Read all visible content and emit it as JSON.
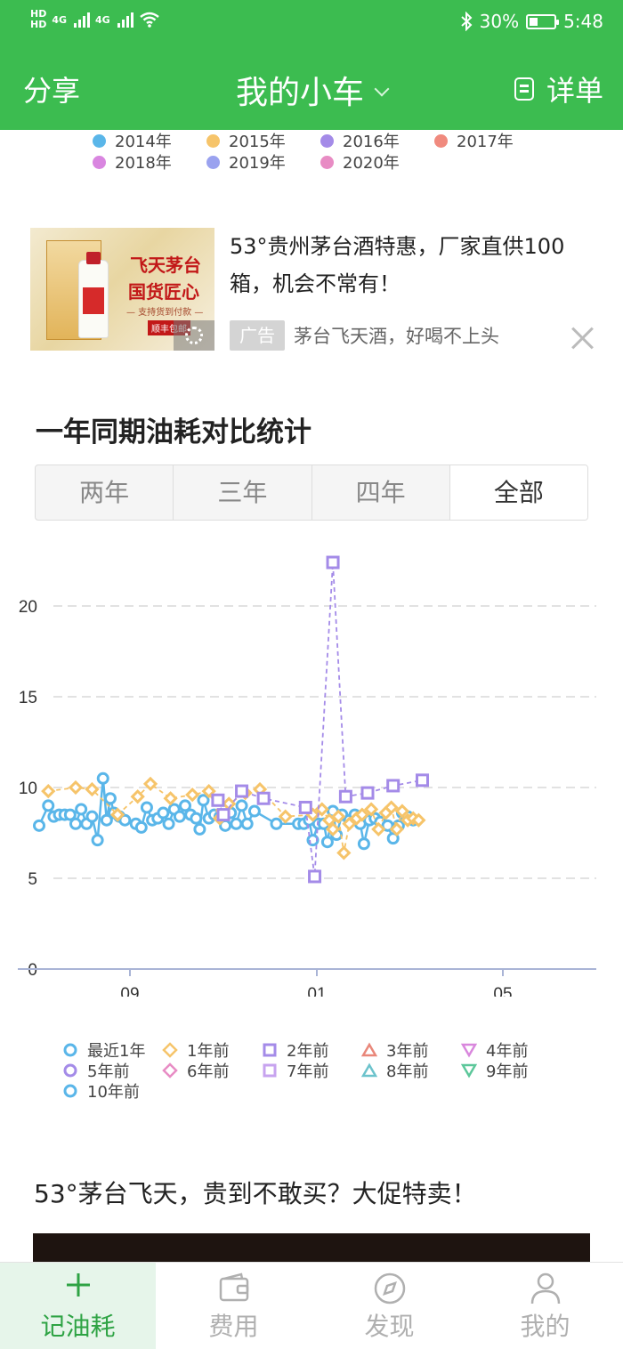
{
  "status_bar": {
    "hd1": "HD",
    "hd2": "HD",
    "net1": "4G",
    "net2": "4G",
    "battery": "30%",
    "time": "5:48"
  },
  "header": {
    "share": "分享",
    "title": "我的小车",
    "detail": "详单"
  },
  "year_legend": [
    "2014年",
    "2015年",
    "2016年",
    "2017年",
    "2018年",
    "2019年",
    "2020年"
  ],
  "year_legend_colors": [
    "#5ab6e9",
    "#f6c46a",
    "#a48be8",
    "#f08a7e",
    "#d986e0",
    "#9aa2ef",
    "#e88cc4"
  ],
  "ad": {
    "title": "53°贵州茅台酒特惠，厂家直供100箱，机会不常有！",
    "tag": "广告",
    "subtitle": "茅台飞天酒，好喝不上头",
    "image_text_1": "飞天茅台",
    "image_text_2": "国货匠心",
    "image_text_3": "— 支持货到付款 —",
    "image_text_4": "顺丰包邮"
  },
  "section": {
    "title": "一年同期油耗对比统计",
    "tabs": [
      "两年",
      "三年",
      "四年",
      "全部"
    ],
    "selected_tab": "全部"
  },
  "chart_data": {
    "type": "line",
    "y_ticks": [
      "0",
      "5",
      "10",
      "15",
      "20"
    ],
    "ylim": [
      0,
      23
    ],
    "x_ticks": [
      "09",
      "01",
      "05"
    ],
    "grid": "horizontal dashed",
    "legend_position": "bottom",
    "x": [
      0,
      3,
      6,
      9,
      12,
      15,
      18,
      21,
      24,
      27,
      30,
      33,
      36,
      39,
      42,
      45,
      48,
      51,
      54,
      57,
      60,
      63,
      66,
      69,
      72,
      75,
      78,
      81,
      84,
      87,
      90,
      93,
      96,
      99,
      102,
      105,
      108,
      111,
      114,
      117,
      120,
      123,
      126,
      129,
      132,
      135,
      138,
      141,
      144,
      147,
      150,
      153,
      156,
      159,
      162,
      165,
      168,
      171,
      174,
      177,
      180,
      183,
      186,
      189,
      192,
      195,
      198,
      201,
      204,
      207,
      210,
      213,
      216,
      219,
      222,
      225,
      228,
      231,
      234,
      237,
      240
    ],
    "series": [
      {
        "name": "最近1年",
        "color": "#5ab6e9",
        "points": [
          [
            0,
            7.9
          ],
          [
            5,
            9.0
          ],
          [
            8,
            8.4
          ],
          [
            11,
            8.5
          ],
          [
            14,
            8.5
          ],
          [
            17,
            8.5
          ],
          [
            20,
            8.0
          ],
          [
            23,
            8.8
          ],
          [
            26,
            8.0
          ],
          [
            29,
            8.4
          ],
          [
            32,
            7.1
          ],
          [
            35,
            10.5
          ],
          [
            37,
            8.2
          ],
          [
            39,
            9.4
          ],
          [
            41,
            8.6
          ],
          [
            44,
            8.4
          ],
          [
            47,
            8.2
          ],
          [
            53,
            8.0
          ],
          [
            56,
            7.8
          ],
          [
            59,
            8.9
          ],
          [
            62,
            8.2
          ],
          [
            65,
            8.3
          ],
          [
            68,
            8.6
          ],
          [
            71,
            8.0
          ],
          [
            74,
            8.8
          ],
          [
            77,
            8.4
          ],
          [
            80,
            9.0
          ],
          [
            83,
            8.5
          ],
          [
            86,
            8.3
          ],
          [
            88,
            7.7
          ],
          [
            90,
            9.3
          ],
          [
            93,
            8.3
          ],
          [
            96,
            8.5
          ],
          [
            99,
            8.4
          ],
          [
            102,
            7.9
          ],
          [
            105,
            8.6
          ],
          [
            108,
            8.0
          ],
          [
            111,
            9.0
          ],
          [
            114,
            8.0
          ],
          [
            118,
            8.7
          ],
          [
            130,
            8.0
          ],
          [
            142,
            8.0
          ],
          [
            145,
            8.0
          ],
          [
            148,
            8.2
          ],
          [
            150,
            7.1
          ],
          [
            153,
            8.0
          ],
          [
            156,
            8.0
          ],
          [
            158,
            7.0
          ],
          [
            161,
            8.7
          ],
          [
            163,
            7.4
          ],
          [
            166,
            8.5
          ],
          [
            170,
            8.2
          ],
          [
            173,
            8.5
          ],
          [
            176,
            8.0
          ],
          [
            178,
            6.9
          ],
          [
            181,
            8.2
          ],
          [
            184,
            8.3
          ],
          [
            187,
            8.1
          ],
          [
            191,
            7.9
          ],
          [
            194,
            7.2
          ],
          [
            197,
            7.9
          ],
          [
            199,
            8.6
          ],
          [
            202,
            8.4
          ],
          [
            205,
            8.2
          ]
        ]
      },
      {
        "name": "1年前",
        "color": "#f6c46a",
        "points": [
          [
            5,
            9.8
          ],
          [
            20,
            10.0
          ],
          [
            29,
            9.9
          ],
          [
            43,
            8.5
          ],
          [
            54,
            9.5
          ],
          [
            61,
            10.2
          ],
          [
            72,
            9.4
          ],
          [
            84,
            9.6
          ],
          [
            93,
            9.8
          ],
          [
            99,
            8.3
          ],
          [
            104,
            9.1
          ],
          [
            113,
            9.7
          ],
          [
            121,
            9.9
          ],
          [
            135,
            8.4
          ],
          [
            150,
            8.5
          ],
          [
            155,
            8.8
          ],
          [
            159,
            8.2
          ],
          [
            161,
            7.7
          ],
          [
            164,
            8.4
          ],
          [
            167,
            6.4
          ],
          [
            170,
            8.0
          ],
          [
            174,
            8.3
          ],
          [
            177,
            8.5
          ],
          [
            182,
            8.8
          ],
          [
            186,
            7.7
          ],
          [
            190,
            8.6
          ],
          [
            193,
            8.9
          ],
          [
            196,
            7.7
          ],
          [
            199,
            8.7
          ],
          [
            202,
            8.2
          ],
          [
            205,
            8.3
          ],
          [
            208,
            8.2
          ]
        ]
      },
      {
        "name": "2年前",
        "color": "#a48be8",
        "points": [
          [
            98,
            9.3
          ],
          [
            101,
            8.5
          ],
          [
            111,
            9.8
          ],
          [
            123,
            9.4
          ],
          [
            146,
            8.9
          ],
          [
            151,
            5.1
          ],
          [
            161,
            22.4
          ],
          [
            168,
            9.5
          ],
          [
            180,
            9.7
          ],
          [
            194,
            10.1
          ],
          [
            210,
            10.4
          ]
        ]
      },
      {
        "name": "3年前",
        "color": "#e9877a",
        "points": []
      },
      {
        "name": "4年前",
        "color": "#d987dd",
        "points": []
      },
      {
        "name": "5年前",
        "color": "#a48be8",
        "points": []
      },
      {
        "name": "6年前",
        "color": "#e88cc4",
        "points": []
      },
      {
        "name": "7年前",
        "color": "#c7a3ef",
        "points": []
      },
      {
        "name": "8年前",
        "color": "#6cc3cc",
        "points": []
      },
      {
        "name": "9年前",
        "color": "#5cc79a",
        "points": []
      },
      {
        "name": "10年前",
        "color": "#5ab6e9",
        "points": []
      }
    ]
  },
  "promo": {
    "title": "53°茅台飞天，贵到不敢买？大促特卖！"
  },
  "tabbar": [
    {
      "label": "记油耗",
      "icon": "plus-icon",
      "active": true
    },
    {
      "label": "费用",
      "icon": "wallet-icon",
      "active": false
    },
    {
      "label": "发现",
      "icon": "compass-icon",
      "active": false
    },
    {
      "label": "我的",
      "icon": "person-icon",
      "active": false
    }
  ]
}
